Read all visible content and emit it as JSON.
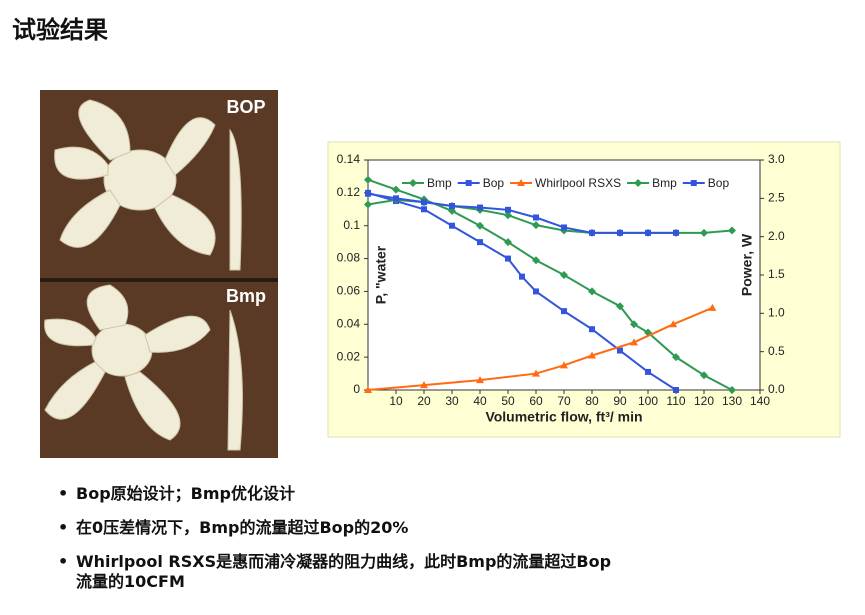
{
  "title": "试验结果",
  "photo_labels": [
    "BOP",
    "Bmp"
  ],
  "bullets": [
    "Bop原始设计；Bmp优化设计",
    "在0压差情况下，Bmp的流量超过Bop的20%",
    "Whirlpool RSXS是惠而浦冷凝器的阻力曲线，此时Bmp的流量超过Bop流量的10CFM"
  ],
  "chart_data": {
    "type": "line",
    "xlabel": "Volumetric flow, ft³/ min",
    "ylabel": "P, \"water",
    "y2label": "Power, W",
    "xlim": [
      0,
      140
    ],
    "xticks": [
      10,
      20,
      30,
      40,
      50,
      60,
      70,
      80,
      90,
      100,
      110,
      120,
      130,
      140
    ],
    "ylim": [
      0,
      0.14
    ],
    "yticks": [
      0,
      0.02,
      0.04,
      0.06,
      0.08,
      0.1,
      0.12,
      0.14
    ],
    "y2lim": [
      0,
      3
    ],
    "y2ticks": [
      {
        "value": 0,
        "label": "0.0"
      },
      0.5,
      {
        "value": 1,
        "label": "1.0"
      },
      1.5,
      {
        "value": 2,
        "label": "2.0"
      },
      2.5,
      {
        "value": 3,
        "label": "3.0"
      }
    ],
    "series": [
      {
        "name": "Bmp",
        "color": "#2e9a52",
        "marker": "diamond",
        "x": [
          0,
          10,
          20,
          30,
          40,
          50,
          60,
          70,
          80,
          90,
          95,
          100,
          110,
          120,
          130
        ],
        "values": [
          0.128,
          0.122,
          0.116,
          0.109,
          0.1,
          0.09,
          0.079,
          0.07,
          0.06,
          0.051,
          0.04,
          0.035,
          0.02,
          0.009,
          0
        ]
      },
      {
        "name": "Bop",
        "color": "#3355dd",
        "marker": "square",
        "x": [
          0,
          10,
          20,
          30,
          40,
          50,
          55,
          60,
          70,
          80,
          90,
          100,
          110
        ],
        "values": [
          0.12,
          0.115,
          0.11,
          0.1,
          0.09,
          0.08,
          0.069,
          0.06,
          0.048,
          0.037,
          0.024,
          0.011,
          0
        ]
      },
      {
        "name": "Whirlpool RSXS",
        "color": "#ff6a13",
        "marker": "triangle",
        "x": [
          0,
          20,
          40,
          60,
          70,
          80,
          95,
          109,
          123
        ],
        "values": [
          0,
          0.003,
          0.006,
          0.01,
          0.015,
          0.021,
          0.029,
          0.04,
          0.05
        ]
      },
      {
        "name": "Bmp",
        "color": "#2e9a52",
        "marker": "diamond",
        "axis": "y2",
        "x": [
          0,
          10,
          20,
          30,
          40,
          50,
          60,
          70,
          80,
          90,
          100,
          110,
          120,
          130
        ],
        "values": [
          2.42,
          2.48,
          2.45,
          2.4,
          2.35,
          2.28,
          2.15,
          2.08,
          2.05,
          2.05,
          2.05,
          2.05,
          2.05,
          2.08
        ]
      },
      {
        "name": "Bop",
        "color": "#3355dd",
        "marker": "square",
        "axis": "y2",
        "x": [
          0,
          10,
          20,
          30,
          40,
          50,
          60,
          70,
          80,
          90,
          100,
          110
        ],
        "values": [
          2.56,
          2.5,
          2.45,
          2.4,
          2.38,
          2.35,
          2.25,
          2.12,
          2.05,
          2.05,
          2.05,
          2.05
        ]
      }
    ]
  }
}
